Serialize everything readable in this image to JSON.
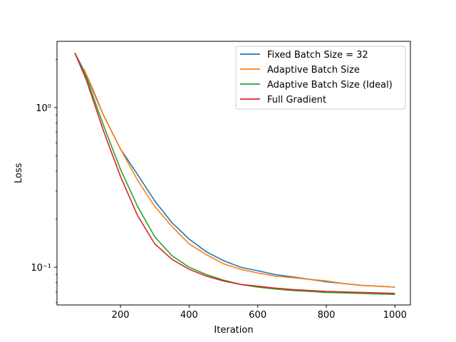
{
  "chart_data": {
    "type": "line",
    "title": "",
    "xlabel": "Iteration",
    "ylabel": "Loss",
    "xscale": "linear",
    "yscale": "log",
    "xlim": [
      15,
      1045
    ],
    "ylim": [
      0.058,
      2.6
    ],
    "grid": false,
    "legend_position": "top-right",
    "x_ticks": [
      200,
      400,
      600,
      800,
      1000
    ],
    "x_tick_labels": [
      "200",
      "400",
      "600",
      "800",
      "1000"
    ],
    "y_ticks": [
      1.0,
      0.1
    ],
    "y_tick_labels": [
      "10⁰",
      "10⁻¹"
    ],
    "series": [
      {
        "name": "Fixed Batch Size = 32",
        "color": "#1f77b4",
        "x": [
          67,
          100,
          150,
          200,
          250,
          300,
          350,
          400,
          450,
          500,
          550,
          600,
          650,
          700,
          750,
          800,
          850,
          900,
          950,
          1000
        ],
        "y": [
          2.2,
          1.6,
          0.9,
          0.55,
          0.38,
          0.26,
          0.19,
          0.15,
          0.125,
          0.11,
          0.1,
          0.095,
          0.09,
          0.087,
          0.084,
          0.081,
          0.079,
          0.077,
          0.076,
          0.075
        ]
      },
      {
        "name": "Adaptive Batch Size",
        "color": "#ff7f0e",
        "x": [
          93,
          120,
          150,
          200,
          250,
          300,
          350,
          400,
          450,
          500,
          550,
          600,
          650,
          700,
          750,
          800,
          850,
          900,
          950,
          1000
        ],
        "y": [
          1.75,
          1.3,
          0.9,
          0.55,
          0.35,
          0.24,
          0.18,
          0.14,
          0.12,
          0.105,
          0.097,
          0.092,
          0.088,
          0.086,
          0.084,
          0.082,
          0.079,
          0.077,
          0.076,
          0.075
        ]
      },
      {
        "name": "Adaptive Batch Size (Ideal)",
        "color": "#2ca02c",
        "x": [
          67,
          100,
          150,
          200,
          250,
          300,
          350,
          400,
          450,
          500,
          550,
          600,
          650,
          700,
          750,
          800,
          850,
          900,
          950,
          1000
        ],
        "y": [
          2.2,
          1.55,
          0.78,
          0.41,
          0.24,
          0.155,
          0.118,
          0.1,
          0.09,
          0.083,
          0.078,
          0.075,
          0.073,
          0.0715,
          0.0705,
          0.0695,
          0.069,
          0.0685,
          0.068,
          0.0675
        ]
      },
      {
        "name": "Full Gradient",
        "color": "#d62728",
        "x": [
          67,
          100,
          150,
          200,
          250,
          300,
          350,
          400,
          450,
          500,
          550,
          600,
          650,
          700,
          750,
          800,
          850,
          900,
          950,
          1000
        ],
        "y": [
          2.2,
          1.5,
          0.72,
          0.37,
          0.21,
          0.14,
          0.112,
          0.097,
          0.088,
          0.082,
          0.078,
          0.076,
          0.074,
          0.0725,
          0.0715,
          0.0705,
          0.07,
          0.0695,
          0.069,
          0.0685
        ]
      }
    ]
  }
}
